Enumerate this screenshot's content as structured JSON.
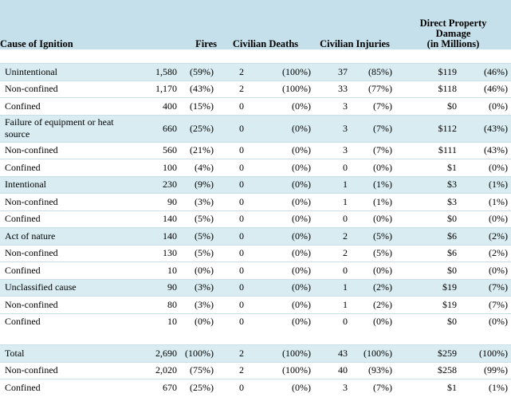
{
  "headers": {
    "cause": "Cause of Ignition",
    "fires": "Fires",
    "deaths": "Civilian Deaths",
    "injuries": "Civilian Injuries",
    "damage_line1": "Direct Property",
    "damage_line2": "Damage",
    "damage_line3": "(in Millions)"
  },
  "rows": [
    {
      "cause": "Unintentional",
      "fires": "1,580",
      "fires_pct": "(59%)",
      "deaths": "2",
      "deaths_pct": "(100%)",
      "injuries": "37",
      "injuries_pct": "(85%)",
      "damage": "$119",
      "damage_pct": "(46%)"
    },
    {
      "cause": "Non-confined",
      "fires": "1,170",
      "fires_pct": "(43%)",
      "deaths": "2",
      "deaths_pct": "(100%)",
      "injuries": "33",
      "injuries_pct": "(77%)",
      "damage": "$118",
      "damage_pct": "(46%)"
    },
    {
      "cause": "Confined",
      "fires": "400",
      "fires_pct": "(15%)",
      "deaths": "0",
      "deaths_pct": "(0%)",
      "injuries": "3",
      "injuries_pct": "(7%)",
      "damage": "$0",
      "damage_pct": "(0%)"
    },
    {
      "cause": "Failure of equipment or heat source",
      "fires": "660",
      "fires_pct": "(25%)",
      "deaths": "0",
      "deaths_pct": "(0%)",
      "injuries": "3",
      "injuries_pct": "(7%)",
      "damage": "$112",
      "damage_pct": "(43%)"
    },
    {
      "cause": "Non-confined",
      "fires": "560",
      "fires_pct": "(21%)",
      "deaths": "0",
      "deaths_pct": "(0%)",
      "injuries": "3",
      "injuries_pct": "(7%)",
      "damage": "$111",
      "damage_pct": "(43%)"
    },
    {
      "cause": "Confined",
      "fires": "100",
      "fires_pct": "(4%)",
      "deaths": "0",
      "deaths_pct": "(0%)",
      "injuries": "0",
      "injuries_pct": "(0%)",
      "damage": "$1",
      "damage_pct": "(0%)"
    },
    {
      "cause": "Intentional",
      "fires": "230",
      "fires_pct": "(9%)",
      "deaths": "0",
      "deaths_pct": "(0%)",
      "injuries": "1",
      "injuries_pct": "(1%)",
      "damage": "$3",
      "damage_pct": "(1%)"
    },
    {
      "cause": "Non-confined",
      "fires": "90",
      "fires_pct": "(3%)",
      "deaths": "0",
      "deaths_pct": "(0%)",
      "injuries": "1",
      "injuries_pct": "(1%)",
      "damage": "$3",
      "damage_pct": "(1%)"
    },
    {
      "cause": "Confined",
      "fires": "140",
      "fires_pct": "(5%)",
      "deaths": "0",
      "deaths_pct": "(0%)",
      "injuries": "0",
      "injuries_pct": "(0%)",
      "damage": "$0",
      "damage_pct": "(0%)"
    },
    {
      "cause": "Act of nature",
      "fires": "140",
      "fires_pct": "(5%)",
      "deaths": "0",
      "deaths_pct": "(0%)",
      "injuries": "2",
      "injuries_pct": "(5%)",
      "damage": "$6",
      "damage_pct": "(2%)"
    },
    {
      "cause": "Non-confined",
      "fires": "130",
      "fires_pct": "(5%)",
      "deaths": "0",
      "deaths_pct": "(0%)",
      "injuries": "2",
      "injuries_pct": "(5%)",
      "damage": "$6",
      "damage_pct": "(2%)"
    },
    {
      "cause": "Confined",
      "fires": "10",
      "fires_pct": "(0%)",
      "deaths": "0",
      "deaths_pct": "(0%)",
      "injuries": "0",
      "injuries_pct": "(0%)",
      "damage": "$0",
      "damage_pct": "(0%)"
    },
    {
      "cause": "Unclassified cause",
      "fires": "90",
      "fires_pct": "(3%)",
      "deaths": "0",
      "deaths_pct": "(0%)",
      "injuries": "1",
      "injuries_pct": "(2%)",
      "damage": "$19",
      "damage_pct": "(7%)"
    },
    {
      "cause": "Non-confined",
      "fires": "80",
      "fires_pct": "(3%)",
      "deaths": "0",
      "deaths_pct": "(0%)",
      "injuries": "1",
      "injuries_pct": "(2%)",
      "damage": "$19",
      "damage_pct": "(7%)"
    },
    {
      "cause": "Confined",
      "fires": "10",
      "fires_pct": "(0%)",
      "deaths": "0",
      "deaths_pct": "(0%)",
      "injuries": "0",
      "injuries_pct": "(0%)",
      "damage": "$0",
      "damage_pct": "(0%)"
    }
  ],
  "totals": [
    {
      "cause": "Total",
      "fires": "2,690",
      "fires_pct": "(100%)",
      "deaths": "2",
      "deaths_pct": "(100%)",
      "injuries": "43",
      "injuries_pct": "(100%)",
      "damage": "$259",
      "damage_pct": "(100%)"
    },
    {
      "cause": "Non-confined",
      "fires": "2,020",
      "fires_pct": "(75%)",
      "deaths": "2",
      "deaths_pct": "(100%)",
      "injuries": "40",
      "injuries_pct": "(93%)",
      "damage": "$258",
      "damage_pct": "(99%)"
    },
    {
      "cause": "Confined",
      "fires": "670",
      "fires_pct": "(25%)",
      "deaths": "0",
      "deaths_pct": "(0%)",
      "injuries": "3",
      "injuries_pct": "(7%)",
      "damage": "$1",
      "damage_pct": "(1%)"
    }
  ],
  "colors": {
    "header_bg": "#c5e0ea",
    "shaded_row_bg": "#d9ecf2",
    "row_rule": "#c9dfe7"
  }
}
